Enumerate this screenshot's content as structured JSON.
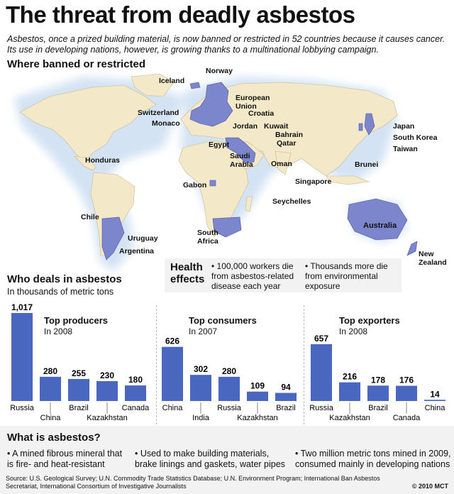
{
  "title": "The threat from deadly asbestos",
  "subtitle": "Asbestos, once a prized building material, is now banned or restricted in 52 countries because it causes cancer. Its use in developing nations, however, is growing thanks to a multinational lobbying campaign.",
  "map": {
    "heading": "Where banned or restricted",
    "labels": [
      "Norway",
      "Iceland",
      "European Union",
      "Switzerland",
      "Croatia",
      "Monaco",
      "Kuwait",
      "Bahrain",
      "Jordan",
      "Qatar",
      "Egypt",
      "Saudi Arabia",
      "Oman",
      "Japan",
      "South Korea",
      "Taiwan",
      "Brunei",
      "Singapore",
      "Honduras",
      "Gabon",
      "Seychelles",
      "Chile",
      "Uruguay",
      "Argentina",
      "South Africa",
      "Australia",
      "New Zealand"
    ],
    "colors": {
      "land": "#f3e9c8",
      "banned": "#7b86cc",
      "ocean_glow": "#cfe0f2"
    }
  },
  "health": {
    "title": "Health effects",
    "items": [
      "• 100,000 workers die from asbestos-related disease each year",
      "• Thousands more die from environmental exposure"
    ]
  },
  "deals": {
    "heading": "Who deals in asbestos",
    "units": "In thousands of metric tons"
  },
  "chart_data": [
    {
      "type": "bar",
      "title": "Top producers",
      "subtitle": "In 2008",
      "categories": [
        "Russia",
        "China",
        "Brazil",
        "Kazakhstan",
        "Canada"
      ],
      "values": [
        1017,
        280,
        255,
        230,
        180
      ],
      "labels": [
        "1,017",
        "280",
        "255",
        "230",
        "180"
      ]
    },
    {
      "type": "bar",
      "title": "Top consumers",
      "subtitle": "In 2007",
      "categories": [
        "China",
        "India",
        "Russia",
        "Kazakhstan",
        "Brazil"
      ],
      "values": [
        626,
        302,
        280,
        109,
        94
      ],
      "labels": [
        "626",
        "302",
        "280",
        "109",
        "94"
      ]
    },
    {
      "type": "bar",
      "title": "Top exporters",
      "subtitle": "In 2008",
      "categories": [
        "Russia",
        "Kazakhstan",
        "Brazil",
        "Canada",
        "China"
      ],
      "values": [
        657,
        216,
        178,
        176,
        14
      ],
      "labels": [
        "657",
        "216",
        "178",
        "176",
        "14"
      ]
    }
  ],
  "bar_color": "#4a67c0",
  "what": {
    "heading": "What is asbestos?",
    "items": [
      "• A mined fibrous mineral that is fire- and heat-resistant",
      "• Used to make building materials, brake linings and gaskets, water pipes",
      "• Two million metric tons mined in 2009, consumed mainly in developing nations"
    ]
  },
  "source": "Source: U.S. Geological Survey; U.N. Commodity Trade Statistics Database; U.N. Environment Program; International Ban Asbestos Secretariat, International Consortium of Investigative Journalists",
  "credit": "© 2010 MCT"
}
